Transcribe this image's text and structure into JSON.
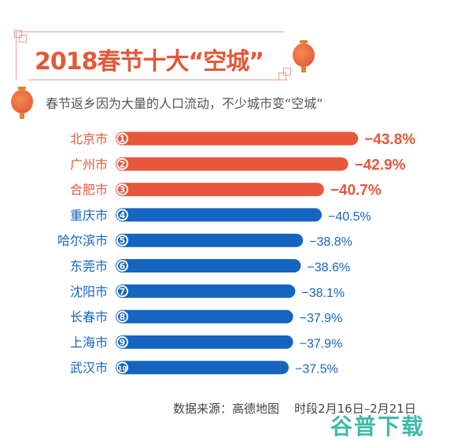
{
  "chart_data": {
    "type": "bar",
    "orientation": "horizontal",
    "title": "2018春节十大“空城”",
    "subtitle": "春节返乡因为大量的人口流动，不少城市变“空城”",
    "categories": [
      "北京市",
      "广州市",
      "合肥市",
      "重庆市",
      "哈尔滨市",
      "东莞市",
      "沈阳市",
      "长春市",
      "上海市",
      "武汉市"
    ],
    "ranks": [
      "1",
      "2",
      "3",
      "4",
      "5",
      "6",
      "7",
      "8",
      "9",
      "10"
    ],
    "values": [
      -43.8,
      -42.9,
      -40.7,
      -40.5,
      -38.8,
      -38.6,
      -38.1,
      -37.9,
      -37.9,
      -37.5
    ],
    "value_labels": [
      "−43.8%",
      "−42.9%",
      "−40.7%",
      "−40.5%",
      "−38.8%",
      "−38.6%",
      "−38.1%",
      "−37.9%",
      "−37.9%",
      "−37.5%"
    ],
    "highlight_count": 3,
    "colors": {
      "highlight": "#e8573a",
      "normal": "#1565c0"
    },
    "grid": false,
    "legend": "none"
  },
  "footer": {
    "source": "数据来源：高德地图",
    "period": "时段2月16日–2月21日"
  },
  "watermark": "谷普下载"
}
